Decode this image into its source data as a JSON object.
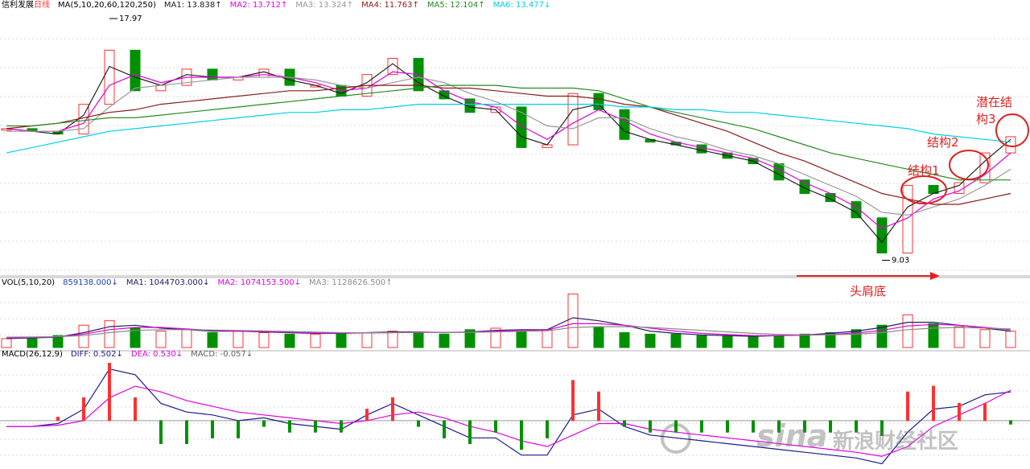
{
  "chart_data": [
    {
      "type": "candlestick",
      "title": "信利发展",
      "subtitle": "日线",
      "indicator": "MA(5,10,20,60,120,250)",
      "ylim": [
        8.6,
        18.3
      ],
      "up_color": "#ff3030",
      "down_color": "#009000",
      "series": [
        {
          "style": "candle",
          "color": "#ff3030",
          "values": [
            13.9,
            13.8,
            13.7,
            14.8,
            16.8,
            15.3,
            15.5,
            16.1,
            15.7,
            15.8,
            16.1,
            15.5,
            15.5,
            15.1,
            15.9,
            16.5,
            15.3,
            15.0,
            14.5,
            14.7,
            13.2,
            13.3,
            15.2,
            14.6,
            13.5,
            13.4,
            13.3,
            13.0,
            12.8,
            12.6,
            12.0,
            11.5,
            11.2,
            10.6,
            9.3,
            11.8,
            11.5,
            11.9,
            13.0,
            13.6
          ]
        },
        {
          "style": "line",
          "name": "MA1: 13.838↑",
          "color": "#202020",
          "values": [
            13.9,
            13.8,
            13.7,
            14.4,
            16.2,
            15.8,
            15.5,
            15.9,
            15.8,
            15.8,
            16.0,
            15.7,
            15.5,
            15.2,
            15.6,
            16.3,
            15.6,
            15.1,
            14.7,
            14.6,
            13.6,
            13.3,
            14.6,
            14.8,
            13.8,
            13.5,
            13.3,
            13.1,
            12.9,
            12.7,
            12.2,
            11.7,
            11.3,
            10.8,
            9.7,
            11.0,
            11.5,
            11.8,
            12.7,
            13.5
          ]
        },
        {
          "style": "line",
          "name": "MA2: 13.712↑",
          "color": "#e000e0",
          "values": [
            13.9,
            13.8,
            13.8,
            14.1,
            15.5,
            15.9,
            15.6,
            15.8,
            15.8,
            15.8,
            15.9,
            15.8,
            15.6,
            15.3,
            15.4,
            16.0,
            15.9,
            15.3,
            14.9,
            14.7,
            14.0,
            13.5,
            14.1,
            14.6,
            14.2,
            13.7,
            13.4,
            13.2,
            13.0,
            12.8,
            12.4,
            11.9,
            11.5,
            11.0,
            10.2,
            10.6,
            11.3,
            11.6,
            12.2,
            13.0
          ]
        },
        {
          "style": "line",
          "name": "MA3: 13.324↑",
          "color": "#9a9a9a",
          "values": [
            13.8,
            13.8,
            13.8,
            13.9,
            14.7,
            15.4,
            15.5,
            15.6,
            15.7,
            15.8,
            15.8,
            15.8,
            15.7,
            15.5,
            15.4,
            15.6,
            15.8,
            15.6,
            15.2,
            14.9,
            14.5,
            14.0,
            13.9,
            14.3,
            14.3,
            13.9,
            13.6,
            13.4,
            13.1,
            12.9,
            12.6,
            12.2,
            11.8,
            11.4,
            10.8,
            10.7,
            11.0,
            11.3,
            11.8,
            12.4
          ]
        },
        {
          "style": "line",
          "name": "MA4: 11.763↑",
          "color": "#8b1a1a",
          "values": [
            13.9,
            14.0,
            14.1,
            14.3,
            14.5,
            14.6,
            14.8,
            14.9,
            15.0,
            15.1,
            15.2,
            15.3,
            15.3,
            15.4,
            15.5,
            15.5,
            15.5,
            15.4,
            15.4,
            15.3,
            15.2,
            15.1,
            15.1,
            15.0,
            14.8,
            14.7,
            14.4,
            14.1,
            13.8,
            13.4,
            13.0,
            12.7,
            12.3,
            11.9,
            11.5,
            11.3,
            11.1,
            11.1,
            11.3,
            11.5
          ]
        },
        {
          "style": "line",
          "name": "MA5: 12.104↑",
          "color": "#228b22",
          "values": [
            14.0,
            14.0,
            14.1,
            14.2,
            14.3,
            14.3,
            14.4,
            14.5,
            14.6,
            14.7,
            14.8,
            14.9,
            15.0,
            15.1,
            15.2,
            15.3,
            15.4,
            15.5,
            15.5,
            15.5,
            15.4,
            15.4,
            15.4,
            15.3,
            15.0,
            14.7,
            14.5,
            14.3,
            14.1,
            13.9,
            13.6,
            13.3,
            13.0,
            12.8,
            12.6,
            12.4,
            12.2,
            12.0,
            12.0,
            12.0
          ]
        },
        {
          "style": "line",
          "name": "MA6: 13.477↓",
          "color": "#00d0e8",
          "values": [
            13.0,
            13.2,
            13.4,
            13.6,
            13.8,
            13.9,
            14.0,
            14.1,
            14.2,
            14.3,
            14.4,
            14.5,
            14.5,
            14.6,
            14.6,
            14.7,
            14.8,
            14.8,
            14.8,
            14.8,
            14.8,
            14.8,
            14.8,
            14.8,
            14.7,
            14.7,
            14.6,
            14.6,
            14.5,
            14.5,
            14.4,
            14.3,
            14.2,
            14.1,
            14.0,
            13.9,
            13.7,
            13.6,
            13.5,
            13.4
          ]
        }
      ],
      "annotations": [
        17.97,
        9.03
      ],
      "notes": [
        "结构1",
        "结构2",
        "潜在结构3",
        "头肩底"
      ],
      "watermark": [
        "sina",
        "新浪财经社区"
      ]
    },
    {
      "type": "bar",
      "indicator": "VOL(5,10,20)",
      "ylim": [
        0,
        4000000
      ],
      "up_color": "#ff3030",
      "down_color": "#009000",
      "series": [
        {
          "style": "bar",
          "name": "859138.000↓",
          "color": "#1e40c0",
          "values": [
            600000,
            700000,
            800000,
            1500000,
            1800000,
            1300000,
            1100000,
            1200000,
            1000000,
            1100000,
            1000000,
            900000,
            900000,
            1000000,
            1000000,
            1100000,
            1000000,
            900000,
            1200000,
            1300000,
            1100000,
            1200000,
            3600000,
            1400000,
            1000000,
            900000,
            900000,
            800000,
            800000,
            700000,
            800000,
            900000,
            1000000,
            1200000,
            1500000,
            2200000,
            1600000,
            1400000,
            1200000,
            1100000
          ]
        },
        {
          "style": "line",
          "name": "MA1: 1044703.000↓",
          "color": "#202060",
          "values": [
            600000,
            650000,
            700000,
            1000000,
            1400000,
            1500000,
            1300000,
            1200000,
            1100000,
            1100000,
            1050000,
            1000000,
            950000,
            950000,
            1000000,
            1050000,
            1050000,
            1000000,
            1050000,
            1150000,
            1200000,
            1200000,
            2000000,
            1800000,
            1500000,
            1100000,
            950000,
            850000,
            800000,
            750000,
            800000,
            850000,
            950000,
            1100000,
            1350000,
            1700000,
            1700000,
            1500000,
            1300000,
            1100000
          ]
        },
        {
          "style": "line",
          "name": "MA2: 1074153.500↓",
          "color": "#e000e0",
          "values": [
            650000,
            680000,
            720000,
            900000,
            1200000,
            1350000,
            1350000,
            1250000,
            1150000,
            1100000,
            1080000,
            1030000,
            980000,
            960000,
            980000,
            1000000,
            1030000,
            1020000,
            1030000,
            1100000,
            1150000,
            1180000,
            1600000,
            1600000,
            1500000,
            1300000,
            1100000,
            950000,
            870000,
            800000,
            800000,
            820000,
            880000,
            980000,
            1150000,
            1450000,
            1550000,
            1500000,
            1350000,
            1200000
          ]
        },
        {
          "style": "line",
          "name": "MA3: 1128626.500↑",
          "color": "#8a8a8a",
          "values": [
            700000,
            710000,
            730000,
            800000,
            1000000,
            1150000,
            1200000,
            1200000,
            1180000,
            1150000,
            1120000,
            1080000,
            1040000,
            1000000,
            990000,
            1000000,
            1010000,
            1010000,
            1020000,
            1050000,
            1090000,
            1120000,
            1350000,
            1400000,
            1400000,
            1350000,
            1250000,
            1150000,
            1050000,
            950000,
            880000,
            850000,
            860000,
            900000,
            1000000,
            1200000,
            1300000,
            1350000,
            1300000,
            1250000
          ]
        }
      ]
    },
    {
      "type": "macd",
      "indicator": "MACD(26,12,9)",
      "ylim": [
        -0.8,
        1.05
      ],
      "up_color": "#ff3030",
      "down_color": "#009000",
      "series": [
        {
          "style": "line",
          "name": "DIFF: 0.502↓",
          "color": "#1a1a8c",
          "values": [
            -0.1,
            -0.1,
            -0.05,
            0.2,
            0.9,
            0.8,
            0.3,
            0.15,
            0.1,
            0.0,
            0.05,
            -0.05,
            -0.1,
            -0.15,
            0.1,
            0.3,
            0.1,
            -0.1,
            -0.3,
            -0.3,
            -0.6,
            -0.6,
            0.1,
            0.2,
            -0.1,
            -0.25,
            -0.3,
            -0.35,
            -0.4,
            -0.45,
            -0.5,
            -0.55,
            -0.6,
            -0.65,
            -0.75,
            -0.2,
            0.2,
            0.25,
            0.45,
            0.5
          ]
        },
        {
          "style": "line",
          "name": "DEA: 0.530↓",
          "color": "#e000e0",
          "values": [
            -0.1,
            -0.1,
            -0.08,
            0.0,
            0.4,
            0.6,
            0.5,
            0.35,
            0.25,
            0.15,
            0.1,
            0.05,
            0.0,
            -0.05,
            0.0,
            0.1,
            0.15,
            0.05,
            -0.1,
            -0.2,
            -0.35,
            -0.45,
            -0.25,
            -0.05,
            -0.05,
            -0.15,
            -0.2,
            -0.25,
            -0.3,
            -0.35,
            -0.4,
            -0.45,
            -0.5,
            -0.55,
            -0.62,
            -0.45,
            -0.1,
            0.1,
            0.3,
            0.53
          ]
        },
        {
          "style": "bar",
          "name": "MACD: -0.057↓",
          "color": "#606060",
          "values": [
            0,
            0,
            0.06,
            0.4,
            1.0,
            0.4,
            -0.4,
            -0.4,
            -0.3,
            -0.3,
            -0.1,
            -0.2,
            -0.2,
            -0.2,
            0.2,
            0.4,
            -0.1,
            -0.3,
            -0.4,
            -0.2,
            -0.5,
            -0.3,
            0.7,
            0.5,
            -0.1,
            -0.2,
            -0.2,
            -0.2,
            -0.2,
            -0.2,
            -0.2,
            -0.2,
            -0.2,
            -0.2,
            -0.26,
            0.5,
            0.6,
            0.3,
            0.3,
            -0.06
          ]
        }
      ]
    }
  ]
}
